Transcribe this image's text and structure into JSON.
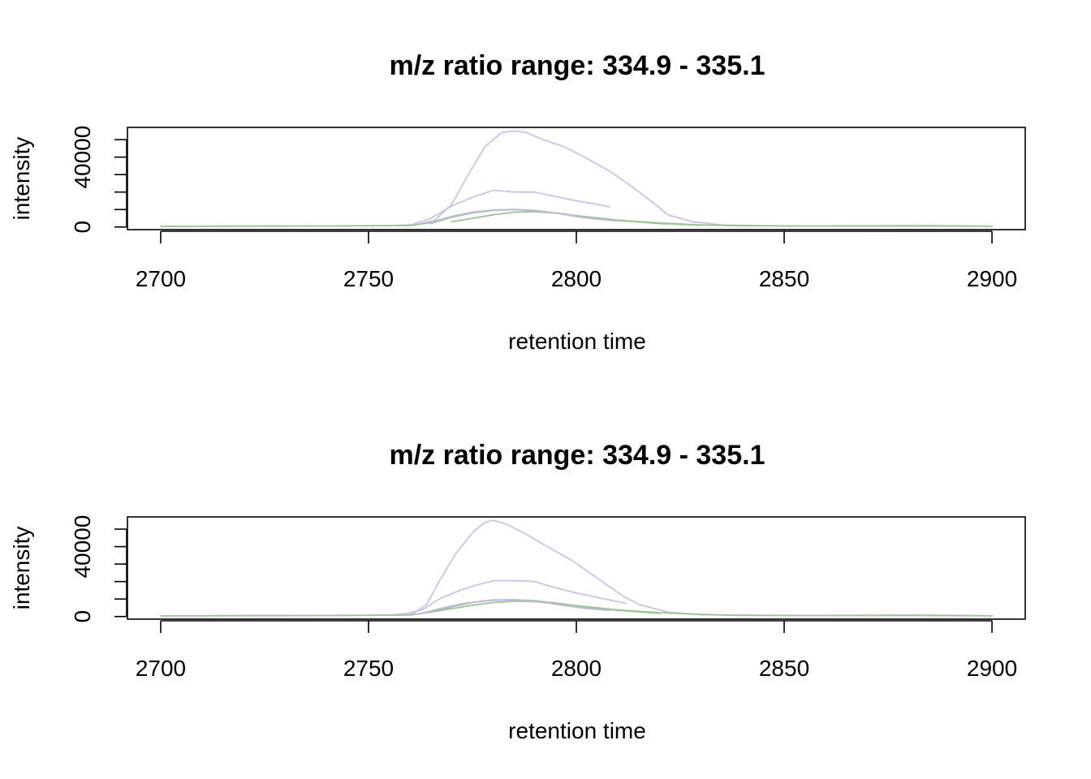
{
  "chart_data": [
    {
      "type": "line",
      "title": "m/z ratio range: 334.9 - 335.1",
      "xlabel": "retention time",
      "ylabel": "intensity",
      "xlim": [
        2692,
        2908
      ],
      "ylim": [
        -1500,
        57000
      ],
      "xticks": [
        2700,
        2750,
        2800,
        2850,
        2900
      ],
      "yticks": [
        0,
        40000
      ],
      "yticks_minor": [
        10000,
        20000,
        30000,
        50000
      ],
      "grid": false,
      "series": [
        {
          "color": "#c8c4e4",
          "x": [
            2700,
            2720,
            2740,
            2755,
            2762,
            2766,
            2770,
            2774,
            2778,
            2782,
            2785,
            2788,
            2792,
            2797,
            2802,
            2808,
            2814,
            2819,
            2822,
            2828,
            2835,
            2850,
            2880,
            2900
          ],
          "y": [
            400,
            500,
            600,
            800,
            1500,
            4000,
            13000,
            30000,
            46000,
            54000,
            55000,
            54000,
            50000,
            46000,
            40000,
            32000,
            22000,
            13000,
            7000,
            3000,
            1200,
            600,
            500,
            400
          ]
        },
        {
          "color": "#c8c4e4",
          "x": [
            2760,
            2765,
            2770,
            2775,
            2780,
            2785,
            2790,
            2795,
            2800,
            2805,
            2808
          ],
          "y": [
            1000,
            5000,
            12000,
            17000,
            21000,
            20000,
            20000,
            17500,
            15000,
            13000,
            11500
          ]
        },
        {
          "color": "#9ec496",
          "x": [
            2700,
            2720,
            2740,
            2760,
            2765,
            2770,
            2775,
            2780,
            2785,
            2790,
            2795,
            2800,
            2810,
            2820,
            2830,
            2840,
            2860,
            2885,
            2900
          ],
          "y": [
            300,
            500,
            600,
            800,
            2500,
            6000,
            8500,
            9700,
            10000,
            9300,
            8000,
            6500,
            4000,
            2300,
            1200,
            700,
            600,
            800,
            400
          ]
        },
        {
          "color": "#9ec496",
          "x": [
            2770,
            2775,
            2780,
            2785,
            2790,
            2795,
            2800,
            2810,
            2820,
            2830
          ],
          "y": [
            3000,
            5000,
            7000,
            8500,
            8800,
            8000,
            6500,
            3800,
            2000,
            1000
          ]
        },
        {
          "color": "#bdb8dc",
          "x": [
            2765,
            2770,
            2775,
            2780,
            2785,
            2790,
            2795,
            2800,
            2805,
            2810
          ],
          "y": [
            2000,
            5500,
            8000,
            9500,
            10000,
            9500,
            8000,
            6000,
            4500,
            3500
          ]
        }
      ]
    },
    {
      "type": "line",
      "title": "m/z ratio range: 334.9 - 335.1",
      "xlabel": "retention time",
      "ylabel": "intensity",
      "xlim": [
        2692,
        2908
      ],
      "ylim": [
        -1500,
        57000
      ],
      "xticks": [
        2700,
        2750,
        2800,
        2850,
        2900
      ],
      "yticks": [
        0,
        40000
      ],
      "yticks_minor": [
        10000,
        20000,
        30000,
        50000
      ],
      "grid": false,
      "series": [
        {
          "color": "#c8c4e4",
          "x": [
            2700,
            2720,
            2740,
            2755,
            2761,
            2764,
            2767,
            2771,
            2775,
            2778,
            2780,
            2783,
            2788,
            2793,
            2799,
            2805,
            2811,
            2815,
            2822,
            2830,
            2850,
            2880,
            2900
          ],
          "y": [
            400,
            500,
            600,
            800,
            2000,
            7000,
            20000,
            36000,
            48000,
            54000,
            55000,
            53000,
            47000,
            40000,
            32000,
            22000,
            12000,
            7000,
            2500,
            1000,
            600,
            500,
            400
          ]
        },
        {
          "color": "#c8c4e4",
          "x": [
            2758,
            2763,
            2767,
            2772,
            2776,
            2780,
            2785,
            2790,
            2795,
            2800,
            2806,
            2812
          ],
          "y": [
            1000,
            4000,
            10000,
            15000,
            18000,
            20500,
            20500,
            20000,
            16500,
            13500,
            10500,
            7500
          ]
        },
        {
          "color": "#9ec496",
          "x": [
            2700,
            2720,
            2740,
            2760,
            2765,
            2770,
            2775,
            2780,
            2785,
            2790,
            2795,
            2800,
            2810,
            2820,
            2830,
            2840,
            2860,
            2880,
            2900
          ],
          "y": [
            300,
            500,
            600,
            800,
            2500,
            5500,
            8000,
            9500,
            9600,
            9000,
            7800,
            6200,
            3800,
            2200,
            1200,
            700,
            600,
            800,
            400
          ]
        },
        {
          "color": "#9ec496",
          "x": [
            2765,
            2770,
            2775,
            2780,
            2785,
            2790,
            2795,
            2800,
            2810,
            2820
          ],
          "y": [
            2500,
            4500,
            6500,
            8000,
            8800,
            8500,
            7500,
            6000,
            3500,
            1800
          ]
        },
        {
          "color": "#bdb8dc",
          "x": [
            2763,
            2768,
            2773,
            2778,
            2783,
            2788,
            2793,
            2798,
            2803,
            2808
          ],
          "y": [
            2000,
            5000,
            7500,
            9000,
            9500,
            9000,
            7800,
            6000,
            4500,
            3500
          ]
        }
      ]
    }
  ]
}
